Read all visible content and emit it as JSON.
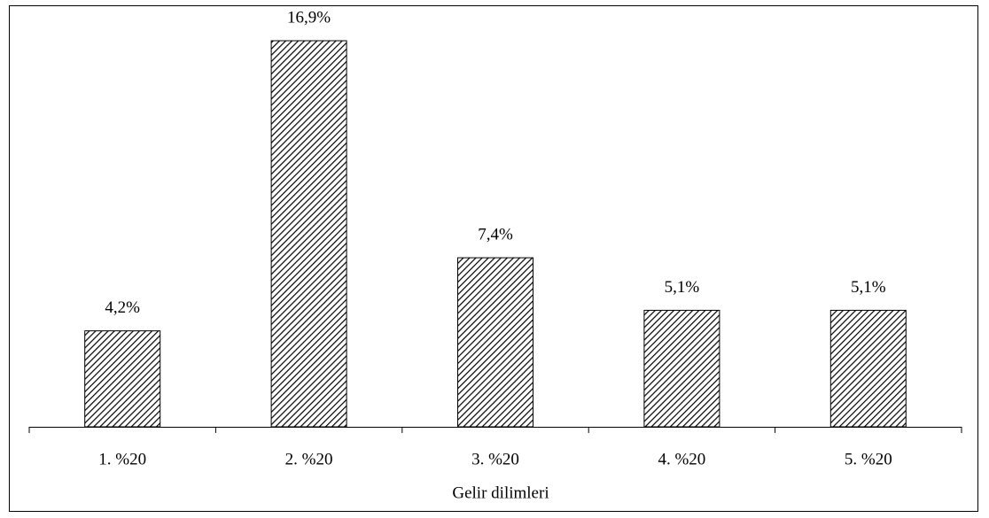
{
  "chart_data": {
    "type": "bar",
    "x_label": "Gelir dilimleri",
    "categories": [
      "1. %20",
      "2. %20",
      "3. %20",
      "4. %20",
      "5. %20"
    ],
    "values": [
      4.2,
      16.9,
      7.4,
      5.1,
      5.1
    ],
    "value_labels": [
      "4,2%",
      "16,9%",
      "7,4%",
      "5,1%",
      "5,1%"
    ],
    "color": "#000000"
  }
}
